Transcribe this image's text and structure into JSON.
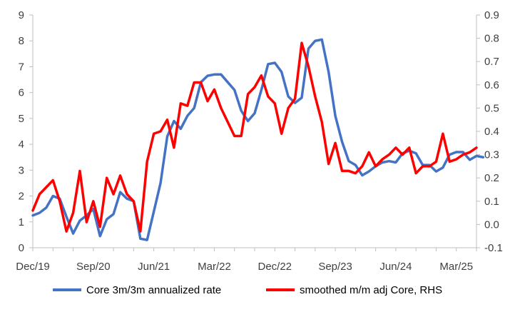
{
  "chart_data": {
    "type": "line",
    "x_ticks": [
      "Dec/19",
      "Sep/20",
      "Jun/21",
      "Mar/22",
      "Dec/22",
      "Sep/23",
      "Jun/24",
      "Mar/25"
    ],
    "y_left": {
      "min": 0,
      "max": 9,
      "ticks": [
        "0",
        "1",
        "2",
        "3",
        "4",
        "5",
        "6",
        "7",
        "8",
        "9"
      ]
    },
    "y_right": {
      "min": -0.1,
      "max": 0.9,
      "ticks": [
        "-0.1",
        "0.0",
        "0.1",
        "0.2",
        "0.3",
        "0.4",
        "0.5",
        "0.6",
        "0.7",
        "0.8",
        "0.9"
      ]
    },
    "grid": false,
    "legend_position": "bottom",
    "series": [
      {
        "name": "Core 3m/3m annualized rate",
        "axis": "left",
        "color": "#4472C4",
        "values": [
          1.25,
          1.35,
          1.55,
          2.0,
          1.9,
          1.2,
          0.55,
          1.05,
          1.25,
          1.5,
          0.45,
          1.1,
          1.3,
          2.15,
          1.9,
          1.8,
          0.35,
          0.3,
          1.4,
          2.5,
          4.3,
          4.9,
          4.6,
          5.1,
          5.4,
          6.4,
          6.65,
          6.7,
          6.7,
          6.4,
          6.1,
          5.3,
          4.9,
          5.2,
          6.1,
          7.1,
          7.15,
          6.8,
          5.85,
          5.6,
          5.8,
          7.7,
          8.0,
          8.05,
          6.8,
          5.1,
          4.1,
          3.35,
          3.2,
          2.8,
          2.95,
          3.15,
          3.3,
          3.35,
          3.3,
          3.65,
          3.75,
          3.65,
          3.2,
          3.2,
          2.95,
          3.1,
          3.6,
          3.7,
          3.7,
          3.4,
          3.55,
          3.5
        ]
      },
      {
        "name": "smoothed m/m adj Core, RHS",
        "axis": "right",
        "color": "#FF0000",
        "values": [
          0.06,
          0.13,
          0.16,
          0.19,
          0.1,
          -0.03,
          0.05,
          0.23,
          0.01,
          0.1,
          -0.01,
          0.2,
          0.13,
          0.21,
          0.13,
          0.1,
          -0.03,
          0.27,
          0.39,
          0.4,
          0.45,
          0.33,
          0.52,
          0.51,
          0.61,
          0.61,
          0.53,
          0.58,
          0.5,
          0.44,
          0.38,
          0.38,
          0.56,
          0.59,
          0.64,
          0.55,
          0.52,
          0.39,
          0.5,
          0.54,
          0.78,
          0.68,
          0.55,
          0.44,
          0.26,
          0.35,
          0.23,
          0.23,
          0.22,
          0.25,
          0.31,
          0.25,
          0.28,
          0.3,
          0.33,
          0.3,
          0.33,
          0.22,
          0.25,
          0.25,
          0.27,
          0.39,
          0.27,
          0.28,
          0.3,
          0.31,
          0.33
        ]
      }
    ]
  }
}
